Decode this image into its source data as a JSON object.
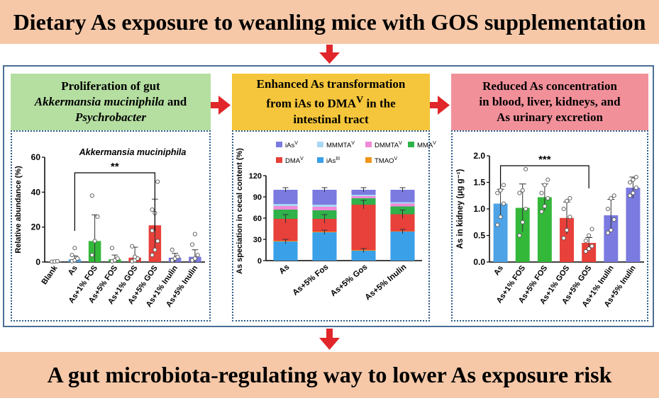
{
  "title": "Dietary As exposure to weanling mice with GOS supplementation",
  "footer": "A gut microbiota-regulating way to lower As exposure risk",
  "panels": {
    "left": {
      "line1": "Proliferation of gut",
      "line2_italic": "Akkermansia muciniphila",
      "line2_rest": " and",
      "line3_italic": "Psychrobacter",
      "color": "#b5dfa1"
    },
    "middle": {
      "line1": "Enhanced As transformation",
      "line2_pre": "from iAs to DMA",
      "line2_sup": "V",
      "line2_post": " in the",
      "line3": "intestinal tract",
      "color": "#f5c63b"
    },
    "right": {
      "line1": "Reduced As concentration",
      "line2": "in blood, liver, kidneys, and",
      "line3": "As urinary excretion",
      "color": "#f2909a"
    }
  },
  "colors": {
    "arrow": "#e0262a",
    "frame": "#4a6f95",
    "banner": "#f6c8a8"
  },
  "chart_data": [
    {
      "type": "bar",
      "title": "Akkermansia muciniphila",
      "ylabel": "Relative abundance (%)",
      "ylim": [
        0,
        60
      ],
      "yticks": [
        "0",
        "20",
        "40",
        "60"
      ],
      "categories": [
        "Blank",
        "As",
        "As+1% FOS",
        "As+5% FOS",
        "As+1% GOS",
        "As+5% GOS",
        "As+1% Inulin",
        "As+5% Inulin"
      ],
      "values": [
        0.3,
        1.5,
        12,
        1.5,
        2.5,
        21,
        2.5,
        3
      ],
      "errors": [
        0.3,
        2,
        15,
        2.5,
        6,
        15,
        2.5,
        4
      ],
      "colors": [
        "#8c8c8c",
        "#4ea3e6",
        "#33b83a",
        "#33b83a",
        "#e8403a",
        "#e8403a",
        "#7a7ae0",
        "#7a7ae0"
      ],
      "points": [
        [
          0.2,
          0.3,
          0.5
        ],
        [
          0.5,
          1,
          2,
          4,
          8
        ],
        [
          4,
          12,
          26,
          38
        ],
        [
          0.5,
          1,
          2,
          8
        ],
        [
          0.5,
          1,
          2,
          9,
          3
        ],
        [
          4,
          7,
          12,
          18,
          28,
          46,
          30
        ],
        [
          1,
          2,
          3,
          7
        ],
        [
          1,
          2,
          4,
          10,
          16
        ]
      ],
      "significance": {
        "from": "As",
        "to": "As+5% GOS",
        "label": "**"
      }
    },
    {
      "type": "bar",
      "stacked": true,
      "ylabel": "As speciation in cecal content (%)",
      "ylim": [
        0,
        120
      ],
      "yticks": [
        "0",
        "30",
        "60",
        "90",
        "120"
      ],
      "categories": [
        "As",
        "As+5% Fos",
        "As+5% Gos",
        "As+5% Inulin"
      ],
      "legend": [
        {
          "name": "iAs",
          "sup": "V",
          "color": "#7a7ae0"
        },
        {
          "name": "MMMTA",
          "sup": "V",
          "color": "#a9d8f5"
        },
        {
          "name": "DMMTA",
          "sup": "V",
          "color": "#f08ad8"
        },
        {
          "name": "MMA",
          "sup": "V",
          "color": "#2fb24a"
        },
        {
          "name": "DMA",
          "sup": "V",
          "color": "#e8403a"
        },
        {
          "name": "iAs",
          "sup": "III",
          "color": "#3aa0e8"
        },
        {
          "name": "TMAO",
          "sup": "V",
          "color": "#f0951a"
        }
      ],
      "series": [
        {
          "name": "iAs",
          "sup": "III",
          "values": [
            27,
            40,
            14,
            41
          ]
        },
        {
          "name": "TMAO",
          "sup": "V",
          "values": [
            1,
            1,
            1,
            0.5
          ]
        },
        {
          "name": "DMA",
          "sup": "V",
          "values": [
            31,
            18,
            64,
            24
          ]
        },
        {
          "name": "MMA",
          "sup": "V",
          "values": [
            13,
            12,
            9,
            11
          ]
        },
        {
          "name": "DMMTA",
          "sup": "V",
          "values": [
            5,
            5,
            3,
            4
          ]
        },
        {
          "name": "MMMTA",
          "sup": "V",
          "values": [
            3,
            3,
            2,
            2
          ]
        },
        {
          "name": "iAs",
          "sup": "V",
          "values": [
            20,
            21,
            7,
            17.5
          ]
        }
      ]
    },
    {
      "type": "bar",
      "ylabel": "As in kidney (μg g⁻¹)",
      "ylim": [
        0,
        2.0
      ],
      "yticks": [
        "0.0",
        "0.5",
        "1.0",
        "1.5",
        "2.0"
      ],
      "categories": [
        "As",
        "As+1% FOS",
        "As+5% FOS",
        "As+1% GOS",
        "As+5% GOS",
        "As+1% Inulin",
        "As+5% Inulin"
      ],
      "values": [
        1.1,
        1.02,
        1.22,
        0.83,
        0.36,
        0.88,
        1.4
      ],
      "errors": [
        0.27,
        0.45,
        0.25,
        0.3,
        0.1,
        0.3,
        0.2
      ],
      "colors": [
        "#4ea3e6",
        "#33b83a",
        "#33b83a",
        "#e8403a",
        "#e8403a",
        "#7a7ae0",
        "#7a7ae0"
      ],
      "points": [
        [
          0.7,
          0.85,
          1.1,
          1.3,
          1.35,
          1.45
        ],
        [
          0.5,
          0.75,
          1.0,
          1.3,
          1.35,
          1.75
        ],
        [
          0.95,
          1.05,
          1.2,
          1.3,
          1.45,
          1.55
        ],
        [
          0.45,
          0.6,
          0.85,
          1.0,
          1.15,
          1.2
        ],
        [
          0.2,
          0.25,
          0.3,
          0.4,
          0.5,
          0.62
        ],
        [
          0.55,
          0.6,
          0.8,
          1.0,
          1.2,
          1.25
        ],
        [
          1.25,
          1.3,
          1.4,
          1.5,
          1.55,
          1.6
        ]
      ],
      "significance": {
        "from": "As",
        "to": "As+5% GOS",
        "label": "***"
      }
    }
  ]
}
